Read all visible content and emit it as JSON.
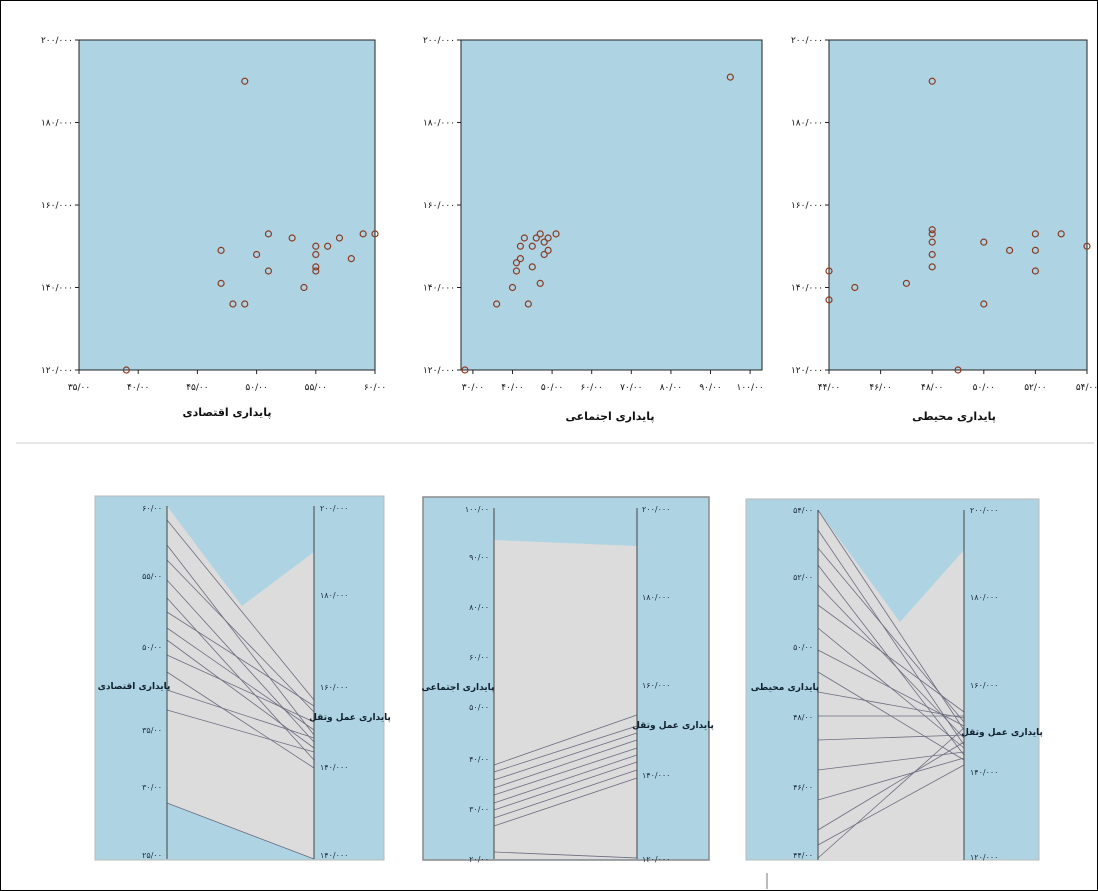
{
  "chart_data": [
    {
      "type": "scatter",
      "xlabel": "پایداری اقتصادی",
      "ylabel": "",
      "xlim": [
        35,
        60
      ],
      "ylim": [
        120,
        200
      ],
      "xticks": [
        35,
        40,
        45,
        50,
        55,
        60
      ],
      "xtick_labels": [
        "۳۵/۰۰",
        "۴۰/۰۰",
        "۴۵/۰۰",
        "۵۰/۰۰",
        "۵۵/۰۰",
        "۶۰/۰۰"
      ],
      "yticks": [
        120,
        140,
        160,
        180,
        200
      ],
      "ytick_labels": [
        "۱۲۰/۰۰۰",
        "۱۴۰/۰۰۰",
        "۱۶۰/۰۰۰",
        "۱۸۰/۰۰۰",
        "۲۰۰/۰۰۰"
      ],
      "points": [
        [
          39,
          120
        ],
        [
          49,
          190
        ],
        [
          47,
          149
        ],
        [
          47,
          141
        ],
        [
          48,
          136
        ],
        [
          49,
          136
        ],
        [
          50,
          148
        ],
        [
          51,
          144
        ],
        [
          51,
          153
        ],
        [
          53,
          152
        ],
        [
          54,
          140
        ],
        [
          55,
          150
        ],
        [
          55,
          148
        ],
        [
          55,
          145
        ],
        [
          55,
          144
        ],
        [
          56,
          150
        ],
        [
          57,
          152
        ],
        [
          58,
          147
        ],
        [
          59,
          153
        ],
        [
          60,
          153
        ]
      ]
    },
    {
      "type": "scatter",
      "xlabel": "پایداری اجتماعی",
      "ylabel": "",
      "xlim": [
        27,
        103
      ],
      "ylim": [
        120,
        200
      ],
      "xticks": [
        30,
        40,
        50,
        60,
        70,
        80,
        90,
        100
      ],
      "xtick_labels": [
        "۳۰/۰۰",
        "۴۰/۰۰",
        "۵۰/۰۰",
        "۶۰/۰۰",
        "۷۰/۰۰",
        "۸۰/۰۰",
        "۹۰/۰۰",
        "۱۰۰/۰۰"
      ],
      "yticks": [
        120,
        140,
        160,
        180,
        200
      ],
      "ytick_labels": [
        "۱۲۰/۰۰۰",
        "۱۴۰/۰۰۰",
        "۱۶۰/۰۰۰",
        "۱۸۰/۰۰۰",
        "۲۰۰/۰۰۰"
      ],
      "points": [
        [
          28,
          120
        ],
        [
          36,
          136
        ],
        [
          40,
          140
        ],
        [
          41,
          144
        ],
        [
          41,
          146
        ],
        [
          42,
          147
        ],
        [
          42,
          150
        ],
        [
          43,
          152
        ],
        [
          44,
          136
        ],
        [
          45,
          145
        ],
        [
          45,
          150
        ],
        [
          46,
          152
        ],
        [
          47,
          141
        ],
        [
          47,
          153
        ],
        [
          48,
          148
        ],
        [
          48,
          151
        ],
        [
          49,
          149
        ],
        [
          49,
          152
        ],
        [
          51,
          153
        ],
        [
          95,
          191
        ]
      ]
    },
    {
      "type": "scatter",
      "xlabel": "پایداری محیطی",
      "ylabel": "",
      "xlim": [
        44,
        54
      ],
      "ylim": [
        120,
        200
      ],
      "xticks": [
        44,
        46,
        48,
        50,
        52,
        54
      ],
      "xtick_labels": [
        "۴۴/۰۰",
        "۴۶/۰۰",
        "۴۸/۰۰",
        "۵۰/۰۰",
        "۵۲/۰۰",
        "۵۴/۰۰"
      ],
      "yticks": [
        120,
        140,
        160,
        180,
        200
      ],
      "ytick_labels": [
        "۱۲۰/۰۰۰",
        "۱۴۰/۰۰۰",
        "۱۶۰/۰۰۰",
        "۱۸۰/۰۰۰",
        "۲۰۰/۰۰۰"
      ],
      "points": [
        [
          44,
          137
        ],
        [
          44,
          144
        ],
        [
          45,
          140
        ],
        [
          47,
          141
        ],
        [
          48,
          190
        ],
        [
          48,
          145
        ],
        [
          48,
          148
        ],
        [
          48,
          151
        ],
        [
          48,
          153
        ],
        [
          48,
          154
        ],
        [
          49,
          120
        ],
        [
          50,
          136
        ],
        [
          50,
          151
        ],
        [
          51,
          149
        ],
        [
          52,
          144
        ],
        [
          52,
          149
        ],
        [
          52,
          153
        ],
        [
          53,
          153
        ],
        [
          54,
          150
        ]
      ]
    },
    {
      "type": "parallel",
      "axis_labels": [
        "پایداری اقتصادی",
        "پایداری عمل وتقل"
      ],
      "left_ticks": [
        "۲۵/۰۰",
        "۳۰/۰۰",
        "۳۵/۰۰",
        "۵۰/۰۰",
        "۵۵/۰۰",
        "۶۰/۰۰"
      ],
      "right_ticks": [
        "۱۴۰/۰۰۰",
        "۱۴۰/۰۰۰",
        "۱۶۰/۰۰۰",
        "۱۸۰/۰۰۰",
        "۲۰۰/۰۰۰"
      ]
    },
    {
      "type": "parallel",
      "axis_labels": [
        "پایداری اجتماعی",
        "پایداری عمل وتقل"
      ],
      "left_ticks": [
        "۲۰/۰۰",
        "۳۰/۰۰",
        "۴۰/۰۰",
        "۵۰/۰۰",
        "۶۰/۰۰",
        "۸۰/۰۰",
        "۹۰/۰۰",
        "۱۰۰/۰۰"
      ],
      "right_ticks": [
        "۱۲۰/۰۰۰",
        "۱۴۰/۰۰۰",
        "۱۶۰/۰۰۰",
        "۱۸۰/۰۰۰",
        "۲۰۰/۰۰۰"
      ]
    },
    {
      "type": "parallel",
      "axis_labels": [
        "پایداری محیطی",
        "پایداری عمل وتقل"
      ],
      "left_ticks": [
        "۴۴/۰۰",
        "۴۶/۰۰",
        "۴۸/۰۰",
        "۵۰/۰۰",
        "۵۲/۰۰",
        "۵۴/۰۰"
      ],
      "right_ticks": [
        "۱۲۰/۰۰۰",
        "۱۴۰/۰۰۰",
        "۱۶۰/۰۰۰",
        "۱۸۰/۰۰۰",
        "۲۰۰/۰۰۰"
      ]
    }
  ],
  "colors": {
    "plot_bg": "#aed4e3",
    "marker": "#8b3a22",
    "band": "#dcdcdc"
  }
}
